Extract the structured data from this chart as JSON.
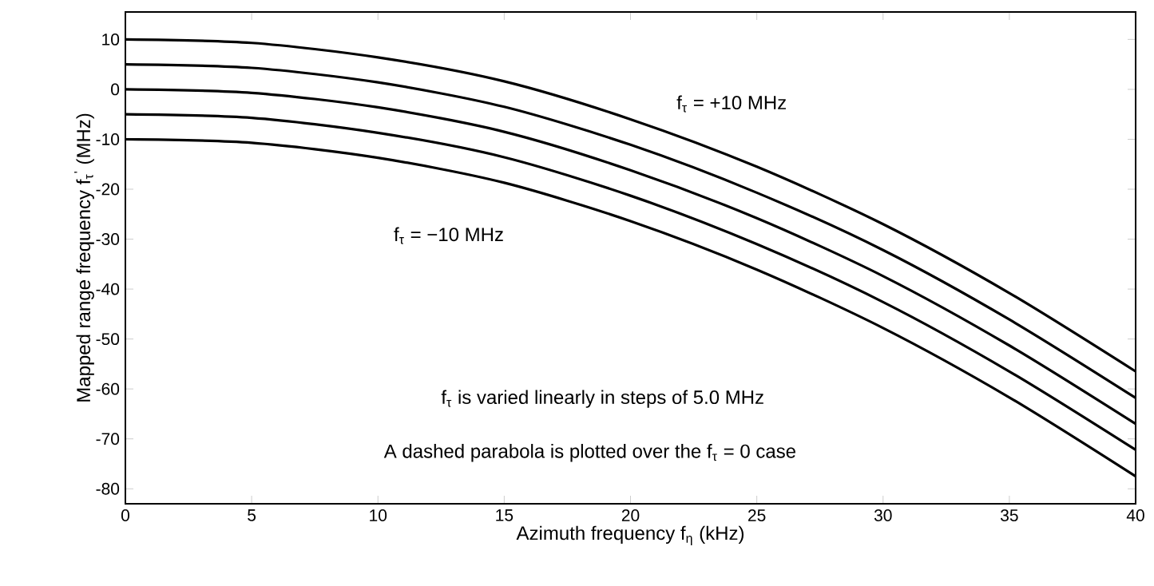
{
  "chart_data": {
    "type": "line",
    "xlabel": "Azimuth frequency  f$_{η}$  (kHz)",
    "ylabel": "Mapped range frequency  f$_{τ}$$^{'}$  (MHz)",
    "x": [
      0,
      5,
      10,
      15,
      20,
      25,
      30,
      35,
      40
    ],
    "series": [
      {
        "color": "#000000",
        "values": [
          10,
          9.3,
          6.4,
          1.6,
          -6,
          -15.5,
          -27,
          -40.8,
          -56.5
        ]
      },
      {
        "color": "#000000",
        "values": [
          5,
          4.3,
          1.4,
          -3.5,
          -11.1,
          -20.7,
          -32.2,
          -46.1,
          -61.8
        ]
      },
      {
        "color": "#000000",
        "values": [
          0,
          -0.7,
          -3.6,
          -8.5,
          -16.2,
          -25.8,
          -37.4,
          -51.3,
          -67
        ]
      },
      {
        "color": "#000000",
        "values": [
          -5,
          -5.7,
          -8.7,
          -13.6,
          -21.3,
          -31,
          -42.6,
          -56.5,
          -72.2
        ]
      },
      {
        "color": "#000000",
        "values": [
          -10,
          -10.7,
          -13.7,
          -18.7,
          -26.4,
          -36.1,
          -47.8,
          -61.7,
          -77.5
        ]
      }
    ],
    "annotations": [
      "f$_{τ}$  =  +10  MHz",
      "f$_{τ}$  =   −10  MHz",
      "f$_{τ}$  is varied linearly in steps of   5.0  MHz",
      "A dashed parabola is plotted over the  f$_{τ}$ = 0  case"
    ],
    "xlim": [
      0,
      40
    ],
    "ylim": [
      -83,
      15.5
    ],
    "xticks": [
      0,
      5,
      10,
      15,
      20,
      25,
      30,
      35,
      40
    ],
    "yticks": [
      -80,
      -70,
      -60,
      -50,
      -40,
      -30,
      -20,
      -10,
      0,
      10
    ],
    "grid": false,
    "marker": "none",
    "line_style": "solid"
  }
}
